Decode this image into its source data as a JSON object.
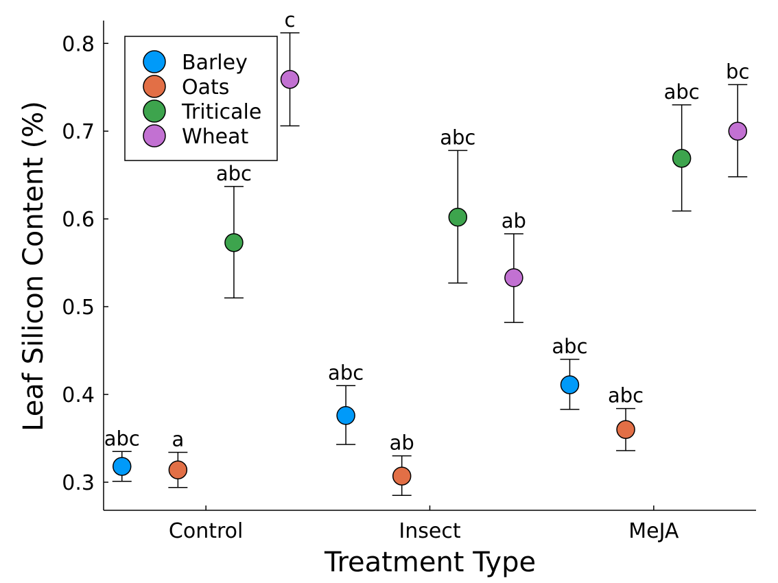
{
  "chart_data": {
    "type": "scatter",
    "xlabel": "Treatment Type",
    "ylabel": "Leaf Silicon Content (%)",
    "categories": [
      "Control",
      "Insect",
      "MeJA"
    ],
    "yticks": [
      "0.3",
      "0.4",
      "0.5",
      "0.6",
      "0.7",
      "0.8"
    ],
    "ylim": [
      0.268,
      0.826
    ],
    "grid": false,
    "legend_position": "top-left",
    "series": [
      {
        "name": "Barley",
        "color": "#009af9",
        "points": [
          {
            "category": "Control",
            "y": 0.318,
            "err_low": 0.301,
            "err_high": 0.335,
            "label": "abc"
          },
          {
            "category": "Insect",
            "y": 0.376,
            "err_low": 0.343,
            "err_high": 0.41,
            "label": "abc"
          },
          {
            "category": "MeJA",
            "y": 0.411,
            "err_low": 0.383,
            "err_high": 0.44,
            "label": "abc"
          }
        ]
      },
      {
        "name": "Oats",
        "color": "#e26f46",
        "points": [
          {
            "category": "Control",
            "y": 0.314,
            "err_low": 0.294,
            "err_high": 0.334,
            "label": "a"
          },
          {
            "category": "Insect",
            "y": 0.307,
            "err_low": 0.285,
            "err_high": 0.33,
            "label": "ab"
          },
          {
            "category": "MeJA",
            "y": 0.36,
            "err_low": 0.336,
            "err_high": 0.384,
            "label": "abc"
          }
        ]
      },
      {
        "name": "Triticale",
        "color": "#3da44d",
        "points": [
          {
            "category": "Control",
            "y": 0.573,
            "err_low": 0.51,
            "err_high": 0.637,
            "label": "abc"
          },
          {
            "category": "Insect",
            "y": 0.602,
            "err_low": 0.527,
            "err_high": 0.678,
            "label": "abc"
          },
          {
            "category": "MeJA",
            "y": 0.669,
            "err_low": 0.609,
            "err_high": 0.73,
            "label": "abc"
          }
        ]
      },
      {
        "name": "Wheat",
        "color": "#c271d2",
        "points": [
          {
            "category": "Control",
            "y": 0.759,
            "err_low": 0.706,
            "err_high": 0.812,
            "label": "c"
          },
          {
            "category": "Insect",
            "y": 0.533,
            "err_low": 0.482,
            "err_high": 0.583,
            "label": "ab"
          },
          {
            "category": "MeJA",
            "y": 0.7,
            "err_low": 0.648,
            "err_high": 0.753,
            "label": "bc"
          }
        ]
      }
    ]
  }
}
